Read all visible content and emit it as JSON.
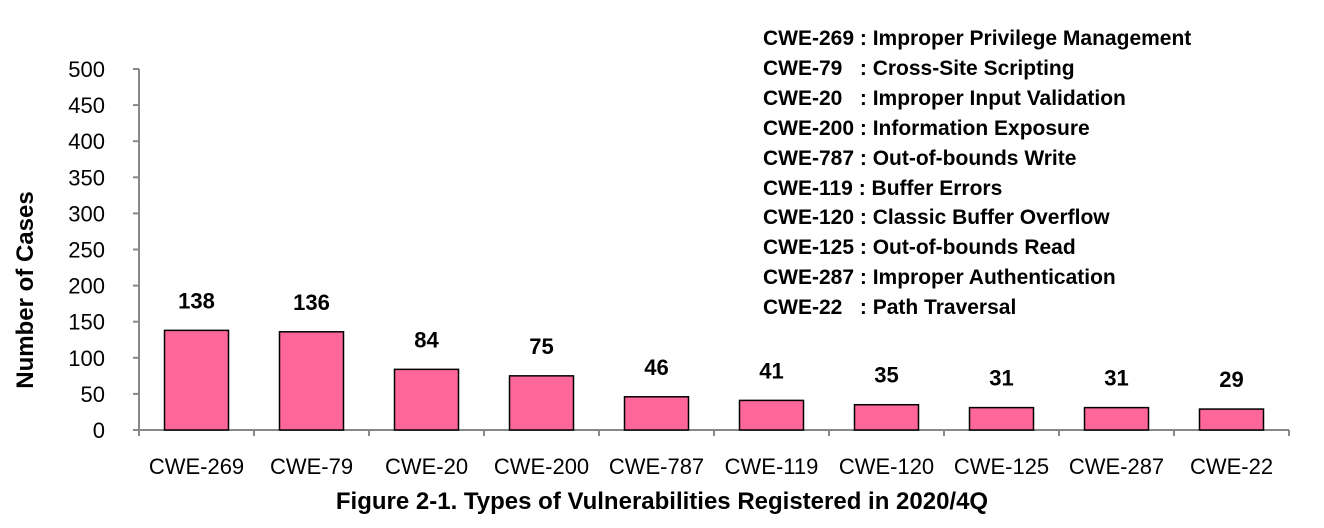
{
  "chart_data": {
    "type": "bar",
    "categories": [
      "CWE-269",
      "CWE-79",
      "CWE-20",
      "CWE-200",
      "CWE-787",
      "CWE-119",
      "CWE-120",
      "CWE-125",
      "CWE-287",
      "CWE-22"
    ],
    "values": [
      138,
      136,
      84,
      75,
      46,
      41,
      35,
      31,
      31,
      29
    ],
    "data_labels": [
      "138",
      "136",
      "84",
      "75",
      "46",
      "41",
      "35",
      "31",
      "31",
      "29"
    ],
    "title": "Figure 2-1. Types of Vulnerabilities Registered in 2020/4Q",
    "xlabel": "",
    "ylabel": "Number of Cases",
    "ylim": [
      0,
      500
    ],
    "yticks": [
      "0",
      "50",
      "100",
      "150",
      "200",
      "250",
      "300",
      "350",
      "400",
      "450",
      "500"
    ],
    "grid": false,
    "bar_color": "#FF6699",
    "legend_placement": "top-right",
    "legend": [
      {
        "code": "CWE-269",
        "sep": " : ",
        "desc": "Improper Privilege Management"
      },
      {
        "code": "CWE-79",
        "sep": "   : ",
        "desc": "Cross-Site Scripting"
      },
      {
        "code": "CWE-20",
        "sep": "   : ",
        "desc": "Improper Input Validation"
      },
      {
        "code": "CWE-200",
        "sep": " : ",
        "desc": "Information Exposure"
      },
      {
        "code": "CWE-787",
        "sep": " : ",
        "desc": "Out-of-bounds Write"
      },
      {
        "code": "CWE-119",
        "sep": " : ",
        "desc": "Buffer Errors"
      },
      {
        "code": "CWE-120",
        "sep": " : ",
        "desc": "Classic Buffer Overflow"
      },
      {
        "code": "CWE-125",
        "sep": " : ",
        "desc": "Out-of-bounds Read"
      },
      {
        "code": "CWE-287",
        "sep": " : ",
        "desc": "Improper Authentication"
      },
      {
        "code": "CWE-22",
        "sep": "   : ",
        "desc": "Path Traversal"
      }
    ]
  }
}
